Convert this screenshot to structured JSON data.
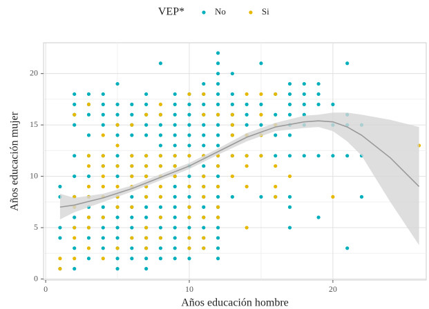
{
  "chart_data": {
    "type": "scatter",
    "xlabel": "Años educación hombre",
    "ylabel": "Años educación mujer",
    "legend_title": "VEP*",
    "legend": "top",
    "grid": true,
    "xlim": [
      -0.15,
      26.5
    ],
    "ylim": [
      -0.1,
      23
    ],
    "xticks": [
      0,
      10,
      20
    ],
    "yticks": [
      0,
      5,
      10,
      15,
      20
    ],
    "series": [
      {
        "name": "No",
        "color": "#00AFBB",
        "x": [
          1,
          1,
          1,
          1,
          1,
          2,
          2,
          2,
          2,
          2,
          2,
          2,
          2,
          2,
          2,
          2,
          2,
          3,
          3,
          3,
          3,
          3,
          3,
          3,
          3,
          3,
          3,
          3,
          3,
          4,
          4,
          4,
          4,
          4,
          4,
          4,
          4,
          4,
          4,
          4,
          4,
          5,
          5,
          5,
          5,
          5,
          5,
          5,
          5,
          5,
          5,
          5,
          5,
          5,
          5,
          5,
          5,
          6,
          6,
          6,
          6,
          6,
          6,
          6,
          6,
          6,
          6,
          6,
          6,
          6,
          6,
          7,
          7,
          7,
          7,
          7,
          7,
          7,
          7,
          7,
          7,
          7,
          7,
          7,
          7,
          7,
          7,
          7,
          8,
          8,
          8,
          8,
          8,
          8,
          8,
          8,
          8,
          8,
          8,
          8,
          8,
          8,
          8,
          9,
          9,
          9,
          9,
          9,
          9,
          9,
          9,
          9,
          9,
          9,
          9,
          9,
          9,
          9,
          9,
          9,
          10,
          10,
          10,
          10,
          10,
          10,
          10,
          10,
          10,
          10,
          10,
          10,
          10,
          10,
          10,
          10,
          10,
          11,
          11,
          11,
          11,
          11,
          11,
          11,
          11,
          11,
          11,
          11,
          11,
          11,
          11,
          11,
          11,
          11,
          12,
          12,
          12,
          12,
          12,
          12,
          12,
          12,
          12,
          12,
          12,
          12,
          12,
          12,
          12,
          12,
          12,
          12,
          12,
          12,
          12,
          13,
          13,
          13,
          13,
          13,
          13,
          13,
          13,
          14,
          14,
          14,
          14,
          14,
          15,
          15,
          15,
          15,
          15,
          15,
          16,
          16,
          16,
          16,
          16,
          16,
          17,
          17,
          17,
          17,
          17,
          17,
          17,
          17,
          17,
          17,
          18,
          18,
          18,
          18,
          18,
          18,
          19,
          19,
          19,
          19,
          19,
          20,
          20,
          20,
          21,
          21,
          21,
          21,
          21,
          22,
          22,
          22
        ],
        "values": [
          9,
          8,
          5,
          4,
          1,
          18,
          17,
          16,
          15,
          12,
          10,
          8,
          7,
          6,
          5,
          3,
          1,
          18,
          17,
          16,
          14,
          12,
          10,
          8,
          7,
          6,
          5,
          4,
          2,
          18,
          17,
          16,
          15,
          12,
          11,
          8,
          7,
          6,
          5,
          4,
          3,
          19,
          17,
          16,
          15,
          14,
          12,
          11,
          10,
          8,
          7,
          6,
          5,
          4,
          3,
          2,
          1,
          17,
          16,
          15,
          14,
          12,
          11,
          10,
          8,
          7,
          6,
          5,
          4,
          3,
          2,
          18,
          17,
          16,
          15,
          14,
          12,
          11,
          10,
          9,
          8,
          7,
          6,
          5,
          4,
          3,
          2,
          1,
          21,
          16,
          15,
          14,
          13,
          12,
          11,
          10,
          8,
          7,
          6,
          5,
          4,
          3,
          2,
          18,
          17,
          16,
          15,
          14,
          13,
          12,
          11,
          10,
          9,
          8,
          7,
          6,
          5,
          4,
          3,
          2,
          18,
          17,
          16,
          15,
          14,
          13,
          12,
          11,
          10,
          9,
          8,
          7,
          6,
          5,
          4,
          3,
          2,
          19,
          18,
          17,
          16,
          15,
          14,
          13,
          12,
          11,
          10,
          9,
          8,
          7,
          6,
          5,
          4,
          3,
          22,
          21,
          20,
          19,
          18,
          17,
          16,
          15,
          14,
          13,
          12,
          11,
          10,
          9,
          8,
          7,
          6,
          5,
          4,
          3,
          2,
          20,
          18,
          17,
          16,
          15,
          14,
          12,
          8,
          17,
          16,
          15,
          14,
          12,
          21,
          17,
          15,
          14,
          12,
          8,
          18,
          16,
          15,
          14,
          12,
          8,
          19,
          18,
          17,
          16,
          15,
          14,
          12,
          8,
          7,
          5,
          19,
          18,
          17,
          16,
          15,
          12,
          19,
          18,
          17,
          12,
          6,
          17,
          15,
          12,
          21,
          16,
          15,
          12,
          3,
          15,
          12,
          8
        ]
      },
      {
        "name": "Si",
        "color": "#E7B800",
        "x": [
          1,
          1,
          2,
          2,
          2,
          2,
          2,
          2,
          3,
          3,
          3,
          3,
          3,
          3,
          3,
          3,
          4,
          4,
          4,
          4,
          4,
          4,
          4,
          4,
          5,
          5,
          5,
          5,
          5,
          5,
          5,
          6,
          6,
          6,
          6,
          6,
          6,
          6,
          7,
          7,
          7,
          7,
          7,
          7,
          7,
          7,
          7,
          8,
          8,
          8,
          8,
          8,
          8,
          8,
          8,
          8,
          9,
          9,
          9,
          10,
          10,
          10,
          10,
          10,
          10,
          10,
          11,
          11,
          11,
          11,
          11,
          11,
          11,
          11,
          11,
          12,
          12,
          12,
          12,
          12,
          12,
          13,
          13,
          13,
          13,
          13,
          14,
          14,
          14,
          14,
          14,
          14,
          15,
          15,
          15,
          15,
          16,
          16,
          16,
          16,
          16,
          17,
          20,
          26
        ],
        "values": [
          2,
          1,
          16,
          8,
          7,
          5,
          4,
          2,
          17,
          12,
          11,
          9,
          8,
          6,
          5,
          3,
          14,
          12,
          11,
          10,
          9,
          8,
          6,
          2,
          15,
          13,
          11,
          9,
          8,
          7,
          3,
          15,
          12,
          11,
          10,
          9,
          7,
          4,
          16,
          12,
          11,
          10,
          9,
          8,
          5,
          4,
          3,
          17,
          16,
          12,
          11,
          10,
          9,
          8,
          6,
          4,
          12,
          11,
          10,
          18,
          12,
          9,
          7,
          6,
          4,
          3,
          18,
          16,
          12,
          10,
          9,
          8,
          6,
          4,
          3,
          16,
          12,
          11,
          9,
          7,
          6,
          16,
          15,
          14,
          12,
          10,
          18,
          14,
          12,
          11,
          9,
          5,
          18,
          16,
          14,
          12,
          18,
          15,
          11,
          9,
          8,
          10,
          8,
          13
        ]
      }
    ],
    "smooth": {
      "color": "#999999",
      "band_color": "#d6d6d6",
      "x": [
        1,
        2,
        4,
        6,
        8,
        10,
        12,
        14,
        16,
        18,
        19,
        20,
        21,
        22,
        24,
        26
      ],
      "values": [
        7.0,
        7.2,
        7.9,
        8.8,
        9.9,
        11.0,
        12.4,
        13.8,
        14.8,
        15.3,
        15.4,
        15.3,
        14.8,
        14.0,
        11.8,
        9.0
      ],
      "lower": [
        5.8,
        6.5,
        7.5,
        8.5,
        9.6,
        10.7,
        12.1,
        13.4,
        14.4,
        14.7,
        14.8,
        14.4,
        13.4,
        12.0,
        7.5,
        3.3
      ],
      "upper": [
        8.3,
        7.9,
        8.3,
        9.1,
        10.2,
        11.3,
        12.7,
        14.2,
        15.2,
        15.9,
        16.0,
        16.2,
        16.2,
        16.0,
        15.5,
        14.8
      ]
    }
  }
}
